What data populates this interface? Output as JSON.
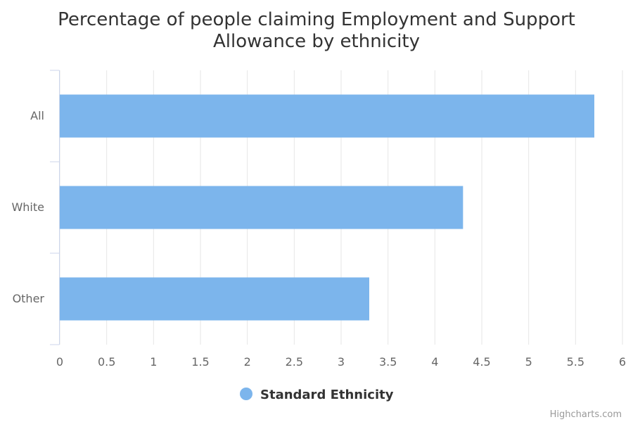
{
  "chart_data": {
    "type": "bar",
    "orientation": "horizontal",
    "title": "Percentage of people claiming Employment and Support Allowance by ethnicity",
    "title_lines": [
      "Percentage of people claiming Employment and Support",
      "Allowance by ethnicity"
    ],
    "categories": [
      "All",
      "White",
      "Other"
    ],
    "series": [
      {
        "name": "Standard Ethnicity",
        "values": [
          5.7,
          4.3,
          3.3
        ],
        "color": "#7cb5ec"
      }
    ],
    "xlim": [
      0,
      6
    ],
    "ticks": [
      0,
      0.5,
      1,
      1.5,
      2,
      2.5,
      3,
      3.5,
      4,
      4.5,
      5,
      5.5,
      6
    ],
    "grid": true,
    "legend_position": "bottom-center",
    "credit": "Highcharts.com"
  }
}
